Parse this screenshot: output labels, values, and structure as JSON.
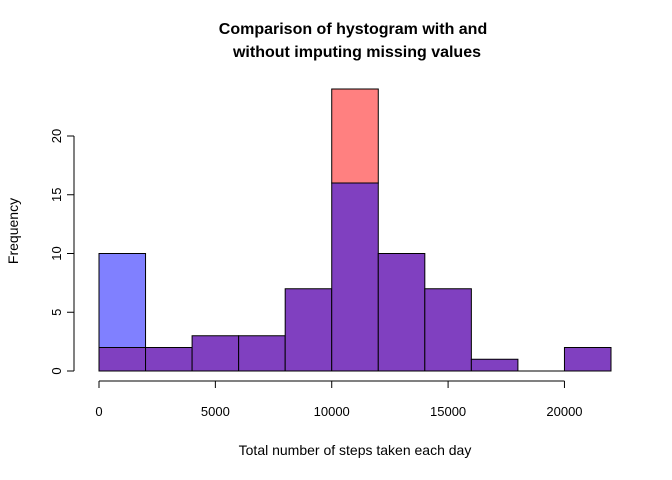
{
  "chart_data": {
    "type": "bar",
    "title_lines": [
      "Comparison of hystogram with and",
      "without imputing missing values"
    ],
    "xlabel": "Total number of steps taken each day",
    "ylabel": "Frequency",
    "xlim": [
      0,
      22000
    ],
    "ylim": [
      0,
      24
    ],
    "x_ticks": [
      0,
      5000,
      10000,
      15000,
      20000
    ],
    "y_ticks": [
      0,
      5,
      10,
      15,
      20
    ],
    "bin_edges": [
      0,
      2000,
      4000,
      6000,
      8000,
      10000,
      12000,
      14000,
      16000,
      18000,
      20000,
      22000
    ],
    "series": [
      {
        "color": "#8080ff",
        "values": [
          10,
          2,
          3,
          3,
          7,
          16,
          10,
          7,
          1,
          0,
          2
        ]
      },
      {
        "color": "#ff8080",
        "values": [
          2,
          2,
          3,
          3,
          7,
          24,
          10,
          7,
          1,
          0,
          2
        ]
      }
    ],
    "overlap_color": "#8040c0",
    "grid": false,
    "legend": "none"
  }
}
